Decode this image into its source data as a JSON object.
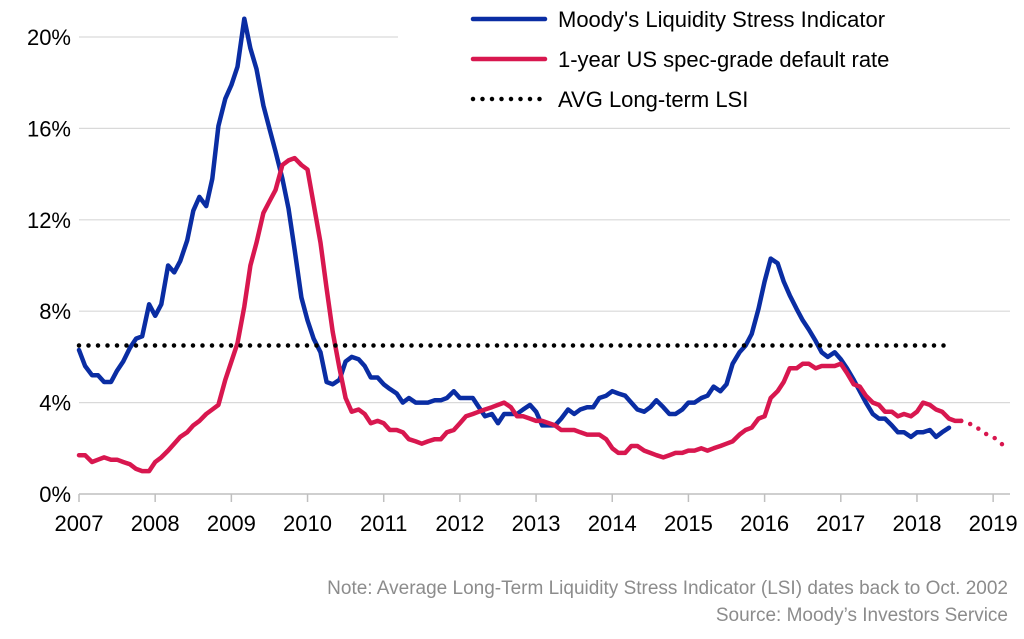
{
  "chart_data": {
    "type": "line",
    "ylim": [
      0,
      0.2
    ],
    "y_ticks": [
      0,
      0.04,
      0.08,
      0.12,
      0.16,
      0.2
    ],
    "y_tick_labels": [
      "0%",
      "4%",
      "8%",
      "12%",
      "16%",
      "20%"
    ],
    "xlim": [
      2007,
      2019.3
    ],
    "x_ticks": [
      2007,
      2008,
      2009,
      2010,
      2011,
      2012,
      2013,
      2014,
      2015,
      2016,
      2017,
      2018,
      2019
    ],
    "x_tick_labels": [
      "2007",
      "2008",
      "2009",
      "2010",
      "2011",
      "2012",
      "2013",
      "2014",
      "2015",
      "2016",
      "2017",
      "2018",
      "2019"
    ],
    "grid": "horizontal",
    "legend_position": "top-right",
    "series": [
      {
        "name": "Moody's Liquidity Stress Indicator",
        "color": "#0a2da3",
        "style": "solid",
        "x": [
          2007.0,
          2007.08,
          2007.17,
          2007.25,
          2007.33,
          2007.42,
          2007.5,
          2007.58,
          2007.67,
          2007.75,
          2007.83,
          2007.92,
          2008.0,
          2008.08,
          2008.17,
          2008.25,
          2008.33,
          2008.42,
          2008.5,
          2008.58,
          2008.67,
          2008.75,
          2008.83,
          2008.92,
          2009.0,
          2009.08,
          2009.17,
          2009.25,
          2009.33,
          2009.42,
          2009.5,
          2009.58,
          2009.67,
          2009.75,
          2009.83,
          2009.92,
          2010.0,
          2010.08,
          2010.17,
          2010.25,
          2010.33,
          2010.42,
          2010.5,
          2010.58,
          2010.67,
          2010.75,
          2010.83,
          2010.92,
          2011.0,
          2011.08,
          2011.17,
          2011.25,
          2011.33,
          2011.42,
          2011.5,
          2011.58,
          2011.67,
          2011.75,
          2011.83,
          2011.92,
          2012.0,
          2012.08,
          2012.17,
          2012.25,
          2012.33,
          2012.42,
          2012.5,
          2012.58,
          2012.67,
          2012.75,
          2012.83,
          2012.92,
          2013.0,
          2013.08,
          2013.17,
          2013.25,
          2013.33,
          2013.42,
          2013.5,
          2013.58,
          2013.67,
          2013.75,
          2013.83,
          2013.92,
          2014.0,
          2014.08,
          2014.17,
          2014.25,
          2014.33,
          2014.42,
          2014.5,
          2014.58,
          2014.67,
          2014.75,
          2014.83,
          2014.92,
          2015.0,
          2015.08,
          2015.17,
          2015.25,
          2015.33,
          2015.42,
          2015.5,
          2015.58,
          2015.67,
          2015.75,
          2015.83,
          2015.92,
          2016.0,
          2016.08,
          2016.17,
          2016.25,
          2016.33,
          2016.42,
          2016.5,
          2016.58,
          2016.67,
          2016.75,
          2016.83,
          2016.92,
          2017.0,
          2017.08,
          2017.17,
          2017.25,
          2017.33,
          2017.42,
          2017.5,
          2017.58,
          2017.67,
          2017.75,
          2017.83,
          2017.92,
          2018.0,
          2018.08,
          2018.17,
          2018.25,
          2018.33,
          2018.42
        ],
        "values": [
          0.063,
          0.056,
          0.052,
          0.052,
          0.049,
          0.049,
          0.054,
          0.058,
          0.064,
          0.068,
          0.069,
          0.083,
          0.078,
          0.083,
          0.1,
          0.097,
          0.102,
          0.111,
          0.124,
          0.13,
          0.126,
          0.138,
          0.161,
          0.173,
          0.179,
          0.187,
          0.208,
          0.195,
          0.186,
          0.17,
          0.16,
          0.15,
          0.138,
          0.125,
          0.107,
          0.086,
          0.076,
          0.068,
          0.062,
          0.049,
          0.048,
          0.05,
          0.058,
          0.06,
          0.059,
          0.056,
          0.051,
          0.051,
          0.048,
          0.046,
          0.044,
          0.04,
          0.042,
          0.04,
          0.04,
          0.04,
          0.041,
          0.041,
          0.042,
          0.045,
          0.042,
          0.042,
          0.042,
          0.038,
          0.034,
          0.035,
          0.031,
          0.035,
          0.035,
          0.035,
          0.037,
          0.039,
          0.036,
          0.03,
          0.03,
          0.03,
          0.033,
          0.037,
          0.035,
          0.037,
          0.038,
          0.038,
          0.042,
          0.043,
          0.045,
          0.044,
          0.043,
          0.04,
          0.037,
          0.036,
          0.038,
          0.041,
          0.038,
          0.035,
          0.035,
          0.037,
          0.04,
          0.04,
          0.042,
          0.043,
          0.047,
          0.045,
          0.048,
          0.057,
          0.062,
          0.065,
          0.07,
          0.081,
          0.093,
          0.103,
          0.101,
          0.093,
          0.087,
          0.081,
          0.076,
          0.072,
          0.067,
          0.062,
          0.06,
          0.062,
          0.059,
          0.055,
          0.05,
          0.045,
          0.04,
          0.035,
          0.033,
          0.033,
          0.03,
          0.027,
          0.027,
          0.025,
          0.027,
          0.027,
          0.028,
          0.025,
          0.027,
          0.029
        ]
      },
      {
        "name": "1-year US spec-grade default rate",
        "color": "#d8174f",
        "style": "solid",
        "x": [
          2007.0,
          2007.08,
          2007.17,
          2007.25,
          2007.33,
          2007.42,
          2007.5,
          2007.58,
          2007.67,
          2007.75,
          2007.83,
          2007.92,
          2008.0,
          2008.08,
          2008.17,
          2008.25,
          2008.33,
          2008.42,
          2008.5,
          2008.58,
          2008.67,
          2008.75,
          2008.83,
          2008.92,
          2009.0,
          2009.08,
          2009.17,
          2009.25,
          2009.33,
          2009.42,
          2009.5,
          2009.58,
          2009.67,
          2009.75,
          2009.83,
          2009.92,
          2010.0,
          2010.08,
          2010.17,
          2010.25,
          2010.33,
          2010.42,
          2010.5,
          2010.58,
          2010.67,
          2010.75,
          2010.83,
          2010.92,
          2011.0,
          2011.08,
          2011.17,
          2011.25,
          2011.33,
          2011.42,
          2011.5,
          2011.58,
          2011.67,
          2011.75,
          2011.83,
          2011.92,
          2012.0,
          2012.08,
          2012.17,
          2012.25,
          2012.33,
          2012.42,
          2012.5,
          2012.58,
          2012.67,
          2012.75,
          2012.83,
          2012.92,
          2013.0,
          2013.08,
          2013.17,
          2013.25,
          2013.33,
          2013.42,
          2013.5,
          2013.58,
          2013.67,
          2013.75,
          2013.83,
          2013.92,
          2014.0,
          2014.08,
          2014.17,
          2014.25,
          2014.33,
          2014.42,
          2014.5,
          2014.58,
          2014.67,
          2014.75,
          2014.83,
          2014.92,
          2015.0,
          2015.08,
          2015.17,
          2015.25,
          2015.33,
          2015.42,
          2015.5,
          2015.58,
          2015.67,
          2015.75,
          2015.83,
          2015.92,
          2016.0,
          2016.08,
          2016.17,
          2016.25,
          2016.33,
          2016.42,
          2016.5,
          2016.58,
          2016.67,
          2016.75,
          2016.83,
          2016.92,
          2017.0,
          2017.08,
          2017.17,
          2017.25,
          2017.33,
          2017.42,
          2017.5,
          2017.58,
          2017.67,
          2017.75,
          2017.83,
          2017.92,
          2018.0,
          2018.08,
          2018.17,
          2018.25,
          2018.33,
          2018.42,
          2018.5,
          2018.58
        ],
        "values": [
          0.017,
          0.017,
          0.014,
          0.015,
          0.016,
          0.015,
          0.015,
          0.014,
          0.013,
          0.011,
          0.01,
          0.01,
          0.014,
          0.016,
          0.019,
          0.022,
          0.025,
          0.027,
          0.03,
          0.032,
          0.035,
          0.037,
          0.039,
          0.05,
          0.058,
          0.066,
          0.082,
          0.1,
          0.11,
          0.123,
          0.128,
          0.133,
          0.144,
          0.146,
          0.147,
          0.144,
          0.142,
          0.127,
          0.11,
          0.09,
          0.071,
          0.055,
          0.042,
          0.036,
          0.037,
          0.035,
          0.031,
          0.032,
          0.031,
          0.028,
          0.028,
          0.027,
          0.024,
          0.023,
          0.022,
          0.023,
          0.024,
          0.024,
          0.027,
          0.028,
          0.031,
          0.034,
          0.035,
          0.036,
          0.037,
          0.038,
          0.039,
          0.04,
          0.038,
          0.034,
          0.034,
          0.033,
          0.032,
          0.032,
          0.031,
          0.03,
          0.028,
          0.028,
          0.028,
          0.027,
          0.026,
          0.026,
          0.026,
          0.024,
          0.02,
          0.018,
          0.018,
          0.021,
          0.021,
          0.019,
          0.018,
          0.017,
          0.016,
          0.017,
          0.018,
          0.018,
          0.019,
          0.019,
          0.02,
          0.019,
          0.02,
          0.021,
          0.022,
          0.023,
          0.026,
          0.028,
          0.029,
          0.033,
          0.034,
          0.042,
          0.045,
          0.049,
          0.055,
          0.055,
          0.057,
          0.057,
          0.055,
          0.056,
          0.056,
          0.056,
          0.057,
          0.053,
          0.048,
          0.047,
          0.043,
          0.04,
          0.039,
          0.036,
          0.036,
          0.034,
          0.035,
          0.034,
          0.036,
          0.04,
          0.039,
          0.037,
          0.036,
          0.033,
          0.032,
          0.032
        ]
      },
      {
        "name": "",
        "color": "#d8174f",
        "style": "dotted",
        "x": [
          2018.58,
          2018.67,
          2018.75,
          2018.83,
          2018.92,
          2019.0,
          2019.08,
          2019.17
        ],
        "values": [
          0.032,
          0.031,
          0.03,
          0.028,
          0.026,
          0.025,
          0.023,
          0.02
        ]
      },
      {
        "name": "AVG Long-term LSI",
        "color": "#000000",
        "style": "dotted",
        "x": [
          2007.0,
          2018.42
        ],
        "values": [
          0.065,
          0.065
        ]
      }
    ]
  },
  "notes": {
    "line1": "Note: Average Long-Term Liquidity Stress Indicator (LSI) dates back to Oct. 2002",
    "line2": "Source: Moody’s Investors Service"
  }
}
